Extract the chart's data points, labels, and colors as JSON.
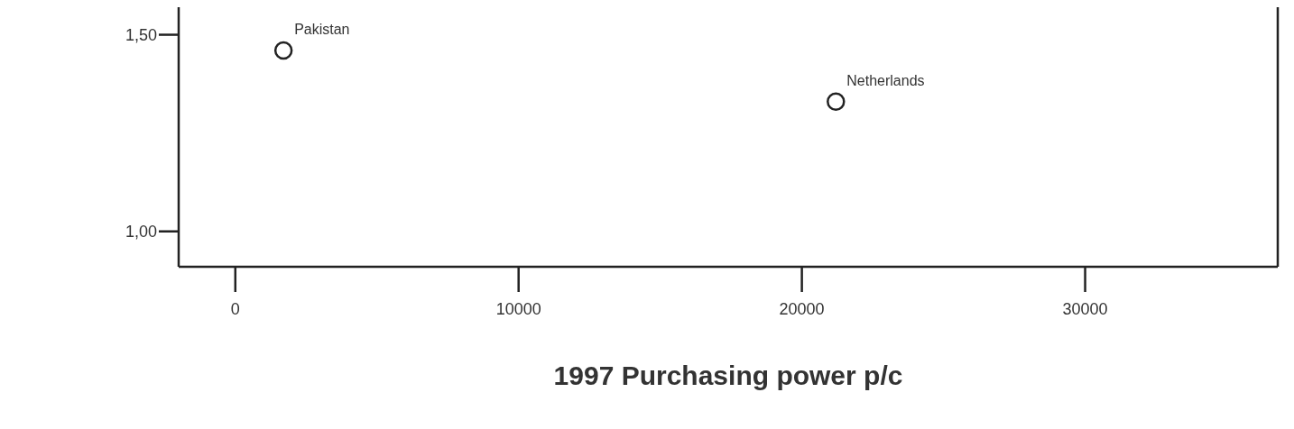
{
  "chart_data": {
    "type": "scatter",
    "xlabel": "1997 Purchasing power p/c",
    "x": [
      1700,
      21200
    ],
    "values": [
      1.46,
      1.33
    ],
    "color": "#222222",
    "marker": "circle",
    "xlim": [
      -2000,
      36800
    ],
    "xticks": [
      0,
      10000,
      20000,
      30000
    ],
    "ylim": [
      0.91,
      1.57
    ],
    "yticks": [
      {
        "value": 1,
        "label": "1,00"
      },
      {
        "value": 1.5,
        "label": "1,50"
      }
    ],
    "grid": false,
    "legend": false,
    "annotations": [
      {
        "text": "Pakistan",
        "x": 1700,
        "y": 1.46
      },
      {
        "text": "Netherlands",
        "x": 21200,
        "y": 1.33
      }
    ]
  }
}
